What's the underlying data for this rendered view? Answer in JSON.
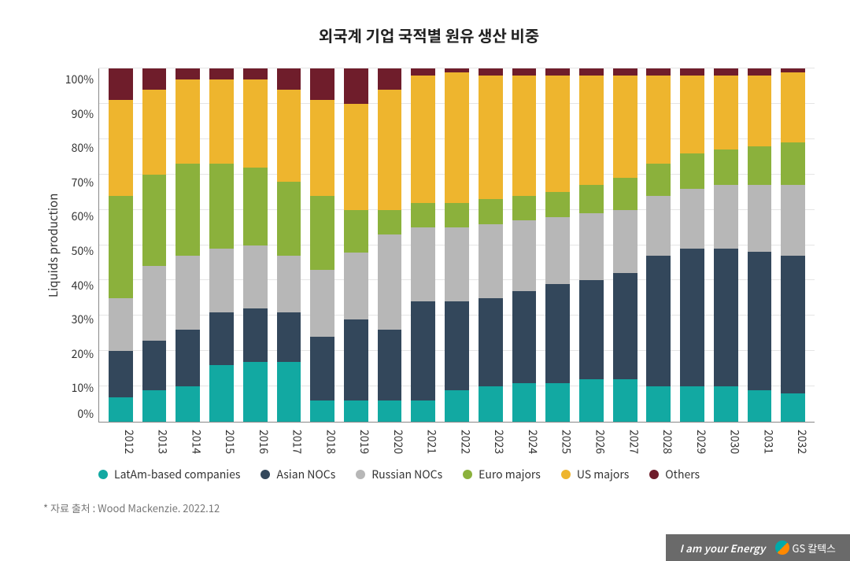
{
  "title": "외국계 기업 국적별 원유 생산 비중",
  "ylabel": "Liquids production",
  "source_note": "* 자료 출처 : Wood Mackenzie. 2022.12",
  "footer_tagline": "I am your Energy",
  "footer_brand": "GS 칼텍스",
  "chart": {
    "type": "stacked-bar-100",
    "background_color": "#ffffff",
    "grid_color": "#e5e5e5",
    "axis_color": "#888888",
    "text_color": "#333333",
    "title_fontsize": 20,
    "label_fontsize": 15,
    "tick_fontsize": 14,
    "legend_fontsize": 14,
    "ylim": [
      0,
      100
    ],
    "ytick_step": 10,
    "yticks": [
      "100%",
      "90%",
      "80%",
      "70%",
      "60%",
      "50%",
      "40%",
      "30%",
      "20%",
      "10%",
      "0%"
    ],
    "categories": [
      "2012",
      "2013",
      "2014",
      "2015",
      "2016",
      "2017",
      "2018",
      "2019",
      "2020",
      "2021",
      "2022",
      "2023",
      "2024",
      "2025",
      "2026",
      "2027",
      "2028",
      "2029",
      "2030",
      "2031",
      "2032"
    ],
    "bar_width": 0.72,
    "series": [
      {
        "name": "LatAm-based companies",
        "color": "#12a9a2",
        "values": [
          7,
          9,
          10,
          16,
          17,
          17,
          6,
          6,
          6,
          6,
          9,
          10,
          11,
          11,
          12,
          12,
          10,
          10,
          10,
          9,
          8
        ]
      },
      {
        "name": "Asian NOCs",
        "color": "#33475b",
        "values": [
          13,
          14,
          16,
          15,
          15,
          14,
          18,
          23,
          20,
          28,
          25,
          25,
          26,
          28,
          28,
          30,
          37,
          39,
          39,
          39,
          39
        ]
      },
      {
        "name": "Russian NOCs",
        "color": "#b7b7b7",
        "values": [
          15,
          21,
          21,
          18,
          18,
          16,
          19,
          19,
          27,
          21,
          21,
          21,
          20,
          19,
          19,
          18,
          17,
          17,
          18,
          19,
          20
        ]
      },
      {
        "name": "Euro majors",
        "color": "#8bb13c",
        "values": [
          29,
          26,
          26,
          24,
          22,
          21,
          21,
          12,
          7,
          7,
          7,
          7,
          7,
          7,
          8,
          9,
          9,
          10,
          10,
          11,
          12
        ]
      },
      {
        "name": "US majors",
        "color": "#eeb52e",
        "values": [
          27,
          24,
          24,
          24,
          25,
          26,
          27,
          30,
          34,
          36,
          37,
          35,
          34,
          33,
          31,
          29,
          25,
          22,
          21,
          20,
          20
        ]
      },
      {
        "name": "Others",
        "color": "#6f1d2b",
        "values": [
          9,
          6,
          3,
          3,
          3,
          6,
          9,
          10,
          6,
          2,
          1,
          2,
          2,
          2,
          2,
          2,
          2,
          2,
          2,
          2,
          1
        ]
      }
    ]
  }
}
